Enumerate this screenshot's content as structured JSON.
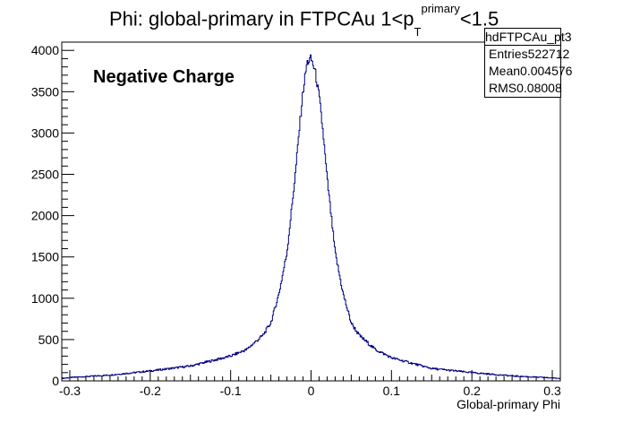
{
  "chart_data": {
    "type": "histogram",
    "title_main": "Phi: global-primary in FTPCAu 1<p",
    "title_sup": "primary",
    "title_sub": "T",
    "title_tail": "<1.5",
    "xlabel": "Global-primary Phi",
    "ylabel": "",
    "annotation": "Negative Charge",
    "xlim": [
      -0.31,
      0.31
    ],
    "ylim": [
      0,
      4100
    ],
    "x_ticks": [
      -0.3,
      -0.2,
      -0.1,
      0,
      0.1,
      0.2,
      0.3
    ],
    "x_tick_labels": [
      "-0.3",
      "-0.2",
      "-0.1",
      "0",
      "0.1",
      "0.2",
      "0.3"
    ],
    "y_ticks": [
      0,
      500,
      1000,
      1500,
      2000,
      2500,
      3000,
      3500,
      4000
    ],
    "y_tick_labels": [
      "0",
      "500",
      "1000",
      "1500",
      "2000",
      "2500",
      "3000",
      "3500",
      "4000"
    ],
    "line_color": "#000080",
    "stats": {
      "name": "hdFTPCAu_pt3",
      "rows": [
        {
          "label": "Entries",
          "value": "522712"
        },
        {
          "label": "Mean",
          "value": "0.004576"
        },
        {
          "label": "RMS",
          "value": "0.08008"
        }
      ]
    },
    "profile": {
      "x": [
        -0.31,
        -0.3,
        -0.25,
        -0.2,
        -0.15,
        -0.1,
        -0.08,
        -0.06,
        -0.05,
        -0.04,
        -0.03,
        -0.02,
        -0.015,
        -0.01,
        -0.005,
        0,
        0.005,
        0.01,
        0.015,
        0.02,
        0.03,
        0.04,
        0.05,
        0.06,
        0.08,
        0.1,
        0.15,
        0.2,
        0.25,
        0.3,
        0.31
      ],
      "y": [
        30,
        40,
        70,
        120,
        180,
        300,
        380,
        550,
        700,
        1050,
        1550,
        2450,
        3000,
        3500,
        3850,
        3900,
        3750,
        3450,
        3000,
        2450,
        1550,
        1050,
        700,
        550,
        380,
        280,
        150,
        100,
        60,
        35,
        30
      ]
    }
  }
}
